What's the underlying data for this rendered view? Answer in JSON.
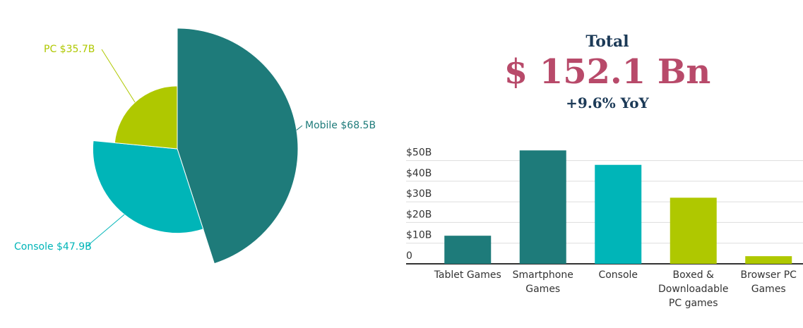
{
  "kpi": {
    "title": "Total",
    "value": "$ 152.1 Bn",
    "change": "+9.6% YoY"
  },
  "chart_data": [
    {
      "type": "pie",
      "categories": [
        "Mobile",
        "Console",
        "PC"
      ],
      "values": [
        68.5,
        47.9,
        35.7
      ],
      "value_labels": [
        "Mobile $68.5B",
        "Console $47.9B",
        "PC $35.7B"
      ],
      "colors": [
        "#1e7b7a",
        "#00b5b8",
        "#afc800"
      ]
    },
    {
      "type": "bar",
      "categories": [
        "Tablet Games",
        "Smartphone Games",
        "Console",
        "Boxed & Downloadable PC games",
        "Browser PC Games"
      ],
      "values": [
        13.6,
        54.9,
        47.9,
        32.0,
        3.7
      ],
      "colors": [
        "#1e7b7a",
        "#1e7b7a",
        "#00b5b8",
        "#afc800",
        "#afc800"
      ],
      "ylim": [
        0,
        56
      ],
      "yticks": [
        0,
        {
          "value": 10,
          "label": "$10B"
        },
        {
          "value": 20,
          "label": "$20B"
        },
        {
          "value": 30,
          "label": "$30B"
        },
        {
          "value": 40,
          "label": "$40B"
        },
        {
          "value": 50,
          "label": "$50B"
        }
      ],
      "grid": true
    }
  ]
}
